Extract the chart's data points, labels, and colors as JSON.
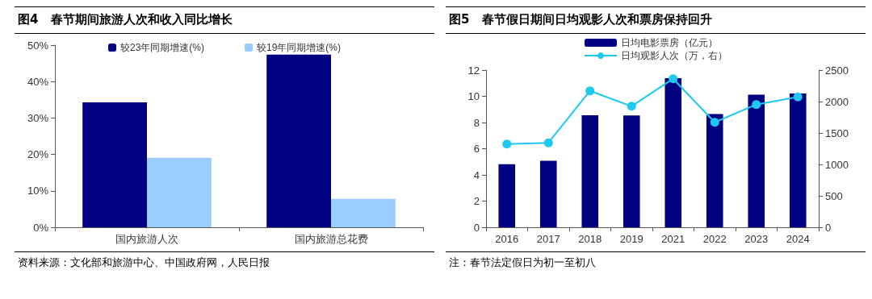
{
  "chart_data": [
    {
      "type": "bar",
      "title": "图4   春节期间旅游人次和收入同比增长",
      "categories": [
        "国内旅游人次",
        "国内旅游总花费"
      ],
      "series": [
        {
          "name": "较23年同期增速(%)",
          "color": "#000080",
          "values": [
            34.3,
            47.4
          ]
        },
        {
          "name": "较19年同期增速(%)",
          "color": "#99ccff",
          "values": [
            19.1,
            7.8
          ]
        }
      ],
      "ylim": [
        0,
        50
      ],
      "yticks": [
        {
          "value": 0,
          "label": "0%"
        },
        {
          "value": 10,
          "label": "10%"
        },
        {
          "value": 20,
          "label": "20%"
        },
        {
          "value": 30,
          "label": "30%"
        },
        {
          "value": 40,
          "label": "40%"
        },
        {
          "value": 50,
          "label": "50%"
        }
      ],
      "grid": false,
      "legend": "top",
      "annotations": [
        "资料来源：文化部和旅游中心、中国政府网，人民日报"
      ]
    },
    {
      "type": "bar",
      "title": "图5   春节假日期间日均观影人次和票房保持回升",
      "categories": [
        "2016",
        "2017",
        "2018",
        "2019",
        "2021",
        "2022",
        "2023",
        "2024"
      ],
      "series": [
        {
          "name": "日均电影票房（亿元）",
          "color": "#000080",
          "values": [
            4.82,
            5.07,
            8.56,
            8.54,
            11.39,
            8.65,
            10.12,
            10.21
          ]
        },
        {
          "name": "日均观影人次（万，右）",
          "type": "line",
          "axis": "y2",
          "color": "#1ec8f0",
          "values": [
            1325,
            1344,
            2170,
            1925,
            2363,
            1670,
            1953,
            2075
          ]
        }
      ],
      "ylim": [
        0,
        12
      ],
      "yticks": [
        0,
        2,
        4,
        6,
        8,
        10,
        12
      ],
      "y2lim": [
        0,
        2500
      ],
      "y2ticks": [
        0,
        500,
        1000,
        1500,
        2000,
        2500
      ],
      "grid": false,
      "legend": "top",
      "marker": "circle",
      "line_style": "solid",
      "annotations": [
        "注：春节法定假日为初一至初八"
      ]
    }
  ]
}
